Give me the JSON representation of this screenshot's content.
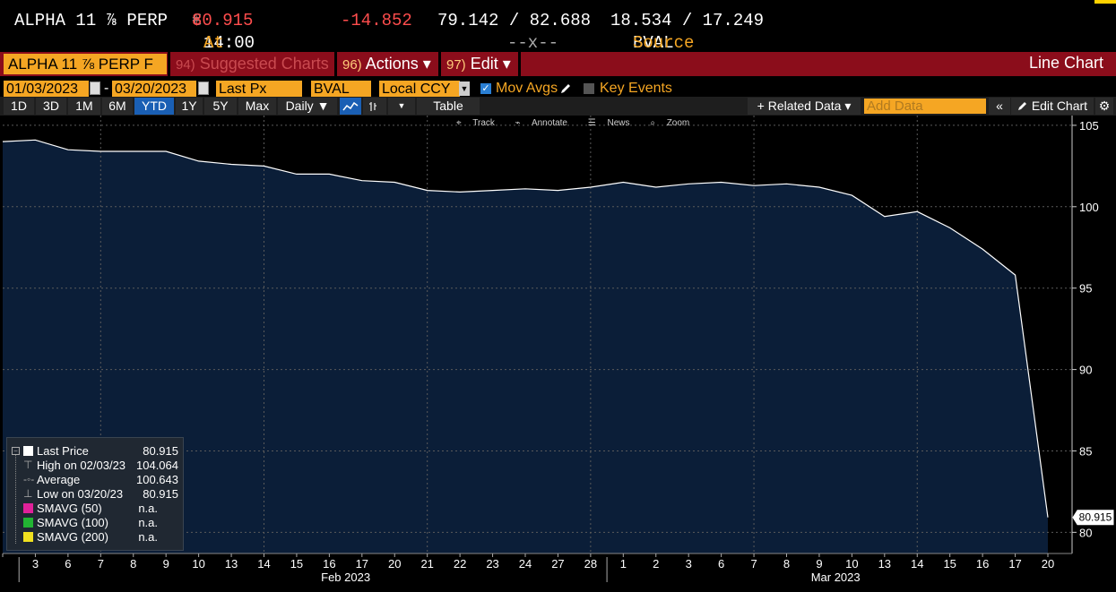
{
  "ticker": {
    "name": "ALPHA 11 ⅞ PERP",
    "currency": "€",
    "arrow": "↓",
    "price": "80.915",
    "change": "-14.852",
    "bid_ask": "79.142 / 82.688",
    "yields": "18.534 / 17.249",
    "at_label": "At",
    "time": "14:00",
    "size": "--x--",
    "source_label": "Source",
    "source": "BVAL"
  },
  "function_bar": {
    "security": "ALPHA 11 ⅞ PERP F",
    "suggested_num": "94)",
    "suggested_label": "Suggested Charts",
    "actions_num": "96)",
    "actions_label": "Actions ▾",
    "edit_num": "97)",
    "edit_label": "Edit ▾",
    "title": "Line Chart"
  },
  "params": {
    "start_date": "01/03/2023",
    "dash": "-",
    "end_date": "03/20/2023",
    "field": "Last Px",
    "source": "BVAL",
    "currency": "Local CCY",
    "mov_avgs": "Mov Avgs",
    "key_events": "Key Events"
  },
  "toolbar": {
    "periods": [
      "1D",
      "3D",
      "1M",
      "6M",
      "YTD",
      "1Y",
      "5Y",
      "Max"
    ],
    "active_period": "YTD",
    "frequency": "Daily ▼",
    "table": "Table",
    "related_data": "+ Related Data ▾",
    "add_data_placeholder": "Add Data",
    "edit_chart": "Edit Chart"
  },
  "mini_toolbar": {
    "track": "Track",
    "annotate": "Annotate",
    "news": "News",
    "zoom": "Zoom"
  },
  "legend": {
    "last_price_label": "Last Price",
    "last_price_value": "80.915",
    "high_label": "High on 02/03/23",
    "high_value": "104.064",
    "average_label": "Average",
    "average_value": "100.643",
    "low_label": "Low on 03/20/23",
    "low_value": "80.915",
    "smavg50_label": "SMAVG (50)",
    "smavg50_value": "n.a.",
    "smavg100_label": "SMAVG (100)",
    "smavg100_value": "n.a.",
    "smavg200_label": "SMAVG (200)",
    "smavg200_value": "n.a.",
    "colors": {
      "last": "#ffffff",
      "smavg50": "#e0219a",
      "smavg100": "#22b533",
      "smavg200": "#f0e020"
    }
  },
  "chart_data": {
    "type": "area",
    "x": [
      "",
      "3",
      "6",
      "7",
      "8",
      "9",
      "10",
      "13",
      "14",
      "15",
      "16",
      "17",
      "20",
      "21",
      "22",
      "23",
      "24",
      "27",
      "28",
      "1",
      "2",
      "3",
      "6",
      "7",
      "8",
      "9",
      "10",
      "13",
      "14",
      "15",
      "16",
      "17",
      "20"
    ],
    "values": [
      104.0,
      104.1,
      103.5,
      103.4,
      103.4,
      103.4,
      102.8,
      102.6,
      102.5,
      102.0,
      102.0,
      101.6,
      101.5,
      101.0,
      100.9,
      101.0,
      101.1,
      101.0,
      101.2,
      101.5,
      101.2,
      101.4,
      101.5,
      101.3,
      101.4,
      101.2,
      100.7,
      99.4,
      99.7,
      98.7,
      97.4,
      95.8,
      80.915
    ],
    "month_labels": [
      {
        "label": "Feb 2023",
        "at_index": 10
      },
      {
        "label": "Mar 2023",
        "at_index": 25
      }
    ],
    "month_dividers_after_index": [
      0,
      18
    ],
    "y_ticks": [
      80,
      85,
      90,
      95,
      100,
      105
    ],
    "ylim": [
      78.7,
      105.6
    ],
    "last_value_label": "80.915",
    "colors": {
      "fill": "#0b1e38",
      "line": "#ffffff",
      "grid": "#5a5a5a"
    }
  }
}
